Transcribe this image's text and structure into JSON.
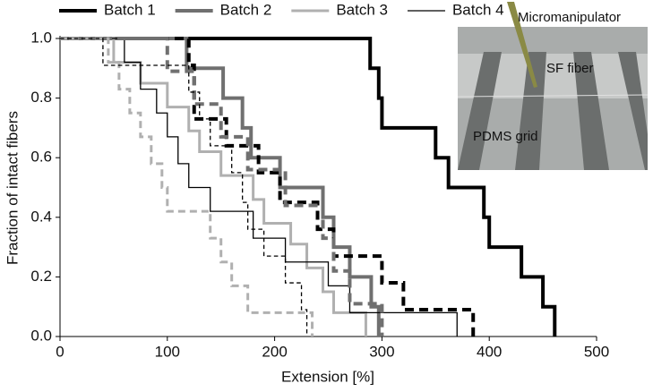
{
  "chart_data": {
    "type": "line",
    "step": "post",
    "x_label": "Extension [%]",
    "y_label": "Fraction of intact fibers",
    "xlim": [
      0,
      500
    ],
    "xticks": [
      0,
      100,
      200,
      300,
      400,
      500
    ],
    "ylim": [
      0,
      1
    ],
    "yticks": [
      {
        "value": 0,
        "label": "0.0"
      },
      0.2,
      0.4,
      0.6,
      0.8,
      {
        "value": 1,
        "label": "1.0"
      }
    ],
    "annotations": [
      "Micromanipulator",
      "SF fiber",
      "PDMS grid"
    ],
    "series": [
      {
        "name": "Batch 1",
        "color": "#000000",
        "line_width": 4,
        "dashed": false,
        "x": [
          0,
          289,
          297,
          300,
          350,
          362,
          395,
          400,
          430,
          450,
          461
        ],
        "values": [
          1,
          0.9,
          0.8,
          0.7,
          0.6,
          0.5,
          0.4,
          0.3,
          0.2,
          0.1,
          0
        ]
      },
      {
        "name": "Batch 2",
        "color": "#707070",
        "line_width": 4,
        "dashed": false,
        "x": [
          0,
          118,
          152,
          170,
          178,
          205,
          245,
          255,
          270,
          290,
          297
        ],
        "values": [
          1,
          0.9,
          0.8,
          0.7,
          0.6,
          0.5,
          0.4,
          0.3,
          0.2,
          0.1,
          0
        ]
      },
      {
        "name": "Batch 3",
        "color": "#b0b0b0",
        "line_width": 3,
        "dashed": false,
        "x": [
          0,
          50,
          75,
          100,
          120,
          130,
          150,
          180,
          190,
          215,
          230,
          245,
          255,
          285
        ],
        "values": [
          1,
          0.92,
          0.85,
          0.77,
          0.69,
          0.62,
          0.54,
          0.46,
          0.38,
          0.31,
          0.23,
          0.15,
          0.08,
          0
        ]
      },
      {
        "name": "Batch 4",
        "color": "#000000",
        "line_width": 1.3,
        "dashed": false,
        "x": [
          0,
          60,
          75,
          90,
          100,
          110,
          120,
          140,
          180,
          210,
          250,
          270,
          370
        ],
        "values": [
          1,
          0.92,
          0.83,
          0.75,
          0.67,
          0.58,
          0.5,
          0.42,
          0.33,
          0.25,
          0.17,
          0.08,
          0
        ]
      },
      {
        "color": "#000000",
        "line_width": 4,
        "dashed": true,
        "x": [
          0,
          120,
          125,
          155,
          185,
          205,
          240,
          255,
          300,
          320,
          385
        ],
        "values": [
          1,
          0.91,
          0.73,
          0.64,
          0.55,
          0.45,
          0.36,
          0.27,
          0.18,
          0.09,
          0
        ]
      },
      {
        "color": "#707070",
        "line_width": 4,
        "dashed": true,
        "x": [
          0,
          100,
          125,
          150,
          175,
          210,
          245,
          255,
          270,
          300
        ],
        "values": [
          1,
          0.89,
          0.78,
          0.67,
          0.56,
          0.44,
          0.33,
          0.22,
          0.11,
          0
        ]
      },
      {
        "color": "#b0b0b0",
        "line_width": 3,
        "dashed": true,
        "x": [
          0,
          45,
          55,
          65,
          75,
          85,
          95,
          100,
          140,
          150,
          160,
          175,
          235
        ],
        "values": [
          1,
          0.92,
          0.83,
          0.75,
          0.67,
          0.58,
          0.5,
          0.42,
          0.33,
          0.25,
          0.17,
          0.08,
          0
        ]
      },
      {
        "color": "#000000",
        "line_width": 1.3,
        "dashed": true,
        "x": [
          0,
          40,
          120,
          130,
          140,
          160,
          170,
          175,
          190,
          210,
          225,
          230
        ],
        "values": [
          1,
          0.91,
          0.82,
          0.73,
          0.64,
          0.55,
          0.45,
          0.36,
          0.27,
          0.18,
          0.09,
          0
        ]
      }
    ]
  }
}
